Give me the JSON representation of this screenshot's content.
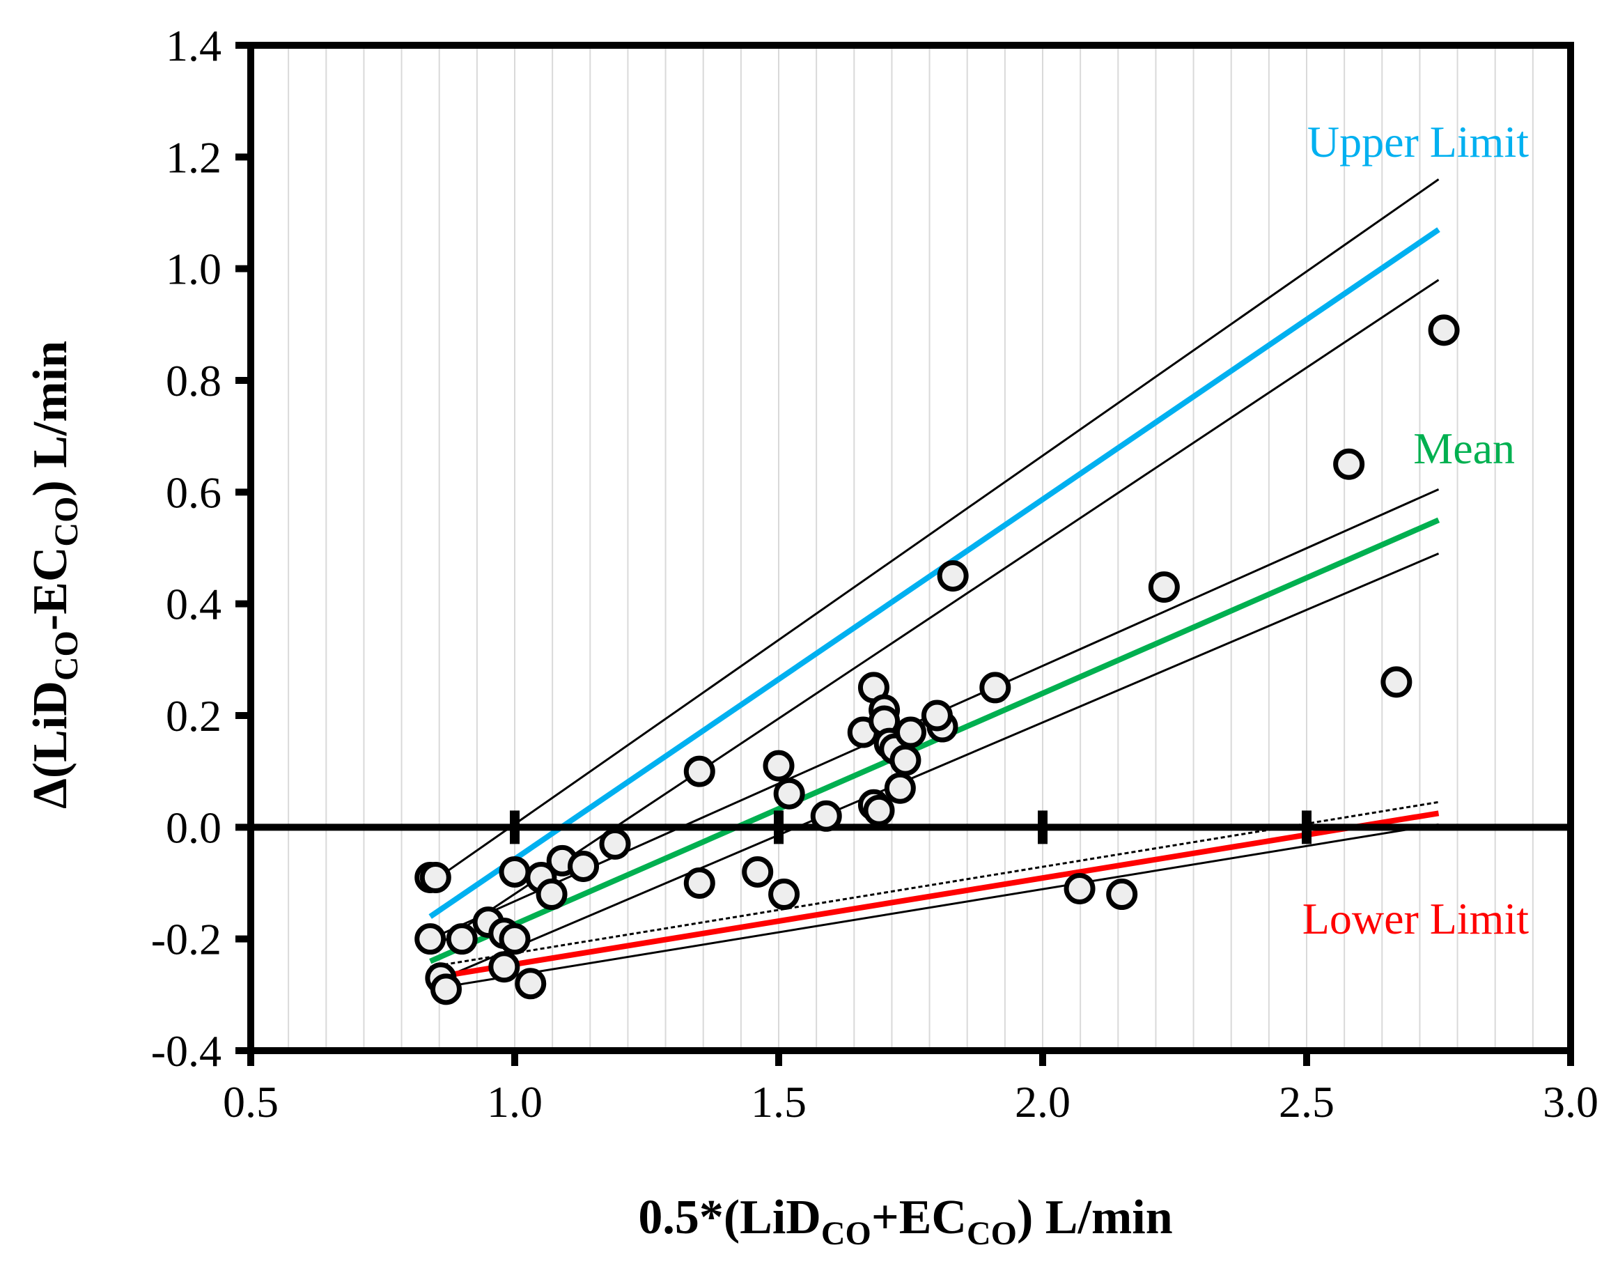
{
  "chart_data": {
    "type": "scatter",
    "title": "",
    "xlabel_parts": {
      "prefix": "0.5*(LiD",
      "sub1": "CO",
      "mid": "+EC",
      "sub2": "CO",
      "suffix": ") L/min"
    },
    "ylabel_parts": {
      "prefix": "Δ(LiD",
      "sub1": "CO",
      "mid": "-EC",
      "sub2": "CO",
      "suffix": ") L/min"
    },
    "xlim": [
      0.5,
      3.0
    ],
    "ylim": [
      -0.4,
      1.4
    ],
    "xticks": [
      0.5,
      1.0,
      1.5,
      2.0,
      2.5,
      3.0
    ],
    "xtick_labels": [
      "0.5",
      "1.0",
      "1.5",
      "2.0",
      "2.5",
      "3.0"
    ],
    "yticks": [
      -0.4,
      -0.2,
      0.0,
      0.2,
      0.4,
      0.6,
      0.8,
      1.0,
      1.2,
      1.4
    ],
    "ytick_labels": [
      "-0.4",
      "-0.2",
      "0.0",
      "0.2",
      "0.4",
      "0.6",
      "0.8",
      "1.0",
      "1.2",
      "1.4"
    ],
    "vertical_gridlines": true,
    "points": [
      {
        "x": 0.84,
        "y": -0.09
      },
      {
        "x": 0.85,
        "y": -0.09
      },
      {
        "x": 0.84,
        "y": -0.2
      },
      {
        "x": 0.86,
        "y": -0.27
      },
      {
        "x": 0.87,
        "y": -0.29
      },
      {
        "x": 0.9,
        "y": -0.2
      },
      {
        "x": 0.95,
        "y": -0.17
      },
      {
        "x": 0.98,
        "y": -0.19
      },
      {
        "x": 1.0,
        "y": -0.2
      },
      {
        "x": 0.98,
        "y": -0.25
      },
      {
        "x": 1.03,
        "y": -0.28
      },
      {
        "x": 1.0,
        "y": -0.08
      },
      {
        "x": 1.05,
        "y": -0.09
      },
      {
        "x": 1.07,
        "y": -0.12
      },
      {
        "x": 1.09,
        "y": -0.06
      },
      {
        "x": 1.13,
        "y": -0.07
      },
      {
        "x": 1.19,
        "y": -0.03
      },
      {
        "x": 1.35,
        "y": 0.1
      },
      {
        "x": 1.35,
        "y": -0.1
      },
      {
        "x": 1.46,
        "y": -0.08
      },
      {
        "x": 1.5,
        "y": 0.11
      },
      {
        "x": 1.51,
        "y": -0.12
      },
      {
        "x": 1.52,
        "y": 0.06
      },
      {
        "x": 1.59,
        "y": 0.02
      },
      {
        "x": 1.66,
        "y": 0.17
      },
      {
        "x": 1.68,
        "y": 0.25
      },
      {
        "x": 1.7,
        "y": 0.21
      },
      {
        "x": 1.7,
        "y": 0.19
      },
      {
        "x": 1.71,
        "y": 0.15
      },
      {
        "x": 1.72,
        "y": 0.14
      },
      {
        "x": 1.74,
        "y": 0.12
      },
      {
        "x": 1.75,
        "y": 0.17
      },
      {
        "x": 1.73,
        "y": 0.07
      },
      {
        "x": 1.68,
        "y": 0.04
      },
      {
        "x": 1.69,
        "y": 0.03
      },
      {
        "x": 1.81,
        "y": 0.18
      },
      {
        "x": 1.8,
        "y": 0.2
      },
      {
        "x": 1.83,
        "y": 0.45
      },
      {
        "x": 1.91,
        "y": 0.25
      },
      {
        "x": 2.07,
        "y": -0.11
      },
      {
        "x": 2.15,
        "y": -0.12
      },
      {
        "x": 2.23,
        "y": 0.43
      },
      {
        "x": 2.58,
        "y": 0.65
      },
      {
        "x": 2.67,
        "y": 0.26
      },
      {
        "x": 2.76,
        "y": 0.89
      }
    ],
    "series": [
      {
        "name": "Upper Limit",
        "color": "#00b0f0",
        "x": [
          0.84,
          2.75
        ],
        "y": [
          -0.16,
          1.07
        ]
      },
      {
        "name": "Mean",
        "color": "#00b050",
        "x": [
          0.84,
          2.75
        ],
        "y": [
          -0.24,
          0.55
        ]
      },
      {
        "name": "Lower Limit",
        "color": "#ff0000",
        "x": [
          0.84,
          2.75
        ],
        "y": [
          -0.27,
          0.025
        ]
      }
    ],
    "confidence_bands": [
      {
        "of": "Upper Limit",
        "upper": {
          "x": [
            0.84,
            2.75
          ],
          "y": [
            -0.1,
            1.16
          ]
        },
        "lower": {
          "x": [
            0.84,
            2.75
          ],
          "y": [
            -0.22,
            0.98
          ]
        }
      },
      {
        "of": "Mean",
        "upper": {
          "x": [
            0.84,
            2.75
          ],
          "y": [
            -0.2,
            0.605
          ]
        },
        "lower": {
          "x": [
            0.84,
            2.75
          ],
          "y": [
            -0.28,
            0.49
          ]
        }
      },
      {
        "of": "Lower Limit",
        "upper": {
          "x": [
            0.84,
            2.75
          ],
          "y": [
            -0.25,
            0.045
          ]
        },
        "lower": {
          "x": [
            0.84,
            2.75
          ],
          "y": [
            -0.29,
            0.005
          ]
        }
      }
    ],
    "annotations": [
      {
        "text": "Upper Limit",
        "color": "#00b0f0"
      },
      {
        "text": "Mean",
        "color": "#00b050"
      },
      {
        "text": "Lower Limit",
        "color": "#ff0000"
      }
    ]
  }
}
